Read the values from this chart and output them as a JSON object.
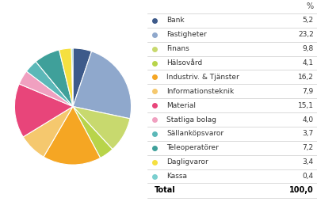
{
  "labels": [
    "Bank",
    "Fastigheter",
    "Finans",
    "Hälsovård",
    "Industriv. & Tjänster",
    "Informationsteknik",
    "Material",
    "Statliga bolag",
    "Sällanköpsvaror",
    "Teleoperatörer",
    "Dagligvaror",
    "Kassa"
  ],
  "values": [
    5.2,
    23.2,
    9.8,
    4.1,
    16.2,
    7.9,
    15.1,
    4.0,
    3.7,
    7.2,
    3.4,
    0.4
  ],
  "display_values": [
    "5,2",
    "23,2",
    "9,8",
    "4,1",
    "16,2",
    "7,9",
    "15,1",
    "4,0",
    "3,7",
    "7,2",
    "3,4",
    "0,4"
  ],
  "colors": [
    "#3d5a8a",
    "#8fa8cc",
    "#c8d96e",
    "#b8d44a",
    "#f5a623",
    "#f5c86e",
    "#e8457a",
    "#f0a0c0",
    "#5bb8b8",
    "#3fa09a",
    "#f5e040",
    "#7acfcf"
  ],
  "background_color": "#ffffff",
  "title_percent": "%",
  "total_label": "Total",
  "total_value": "100,0",
  "figsize": [
    4.0,
    2.69
  ],
  "dpi": 100
}
